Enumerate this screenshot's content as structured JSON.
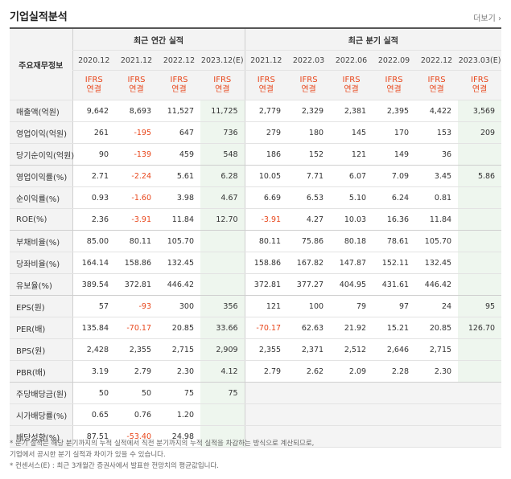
{
  "title": "기업실적분석",
  "more_label": "더보기",
  "header": {
    "row_label": "주요재무정보",
    "annual_group": "최근 연간 실적",
    "quarter_group": "최근 분기 실적",
    "annual_periods": [
      "2020.12",
      "2021.12",
      "2022.12",
      "2023.12(E)"
    ],
    "quarter_periods": [
      "2021.12",
      "2022.03",
      "2022.06",
      "2022.09",
      "2022.12",
      "2023.03(E)"
    ],
    "standard_line1": "IFRS",
    "standard_line2": "연결"
  },
  "rows": [
    {
      "label": "매출액(억원)",
      "annual": [
        "9,642",
        "8,693",
        "11,527",
        "11,725"
      ],
      "quarter": [
        "2,779",
        "2,329",
        "2,381",
        "2,395",
        "4,422",
        "3,569"
      ]
    },
    {
      "label": "영업이익(억원)",
      "annual": [
        "261",
        "-195",
        "647",
        "736"
      ],
      "quarter": [
        "279",
        "180",
        "145",
        "170",
        "153",
        "209"
      ]
    },
    {
      "label": "당기순이익(억원)",
      "annual": [
        "90",
        "-139",
        "459",
        "548"
      ],
      "quarter": [
        "186",
        "152",
        "121",
        "149",
        "36",
        ""
      ]
    },
    {
      "label": "영업이익률(%)",
      "annual": [
        "2.71",
        "-2.24",
        "5.61",
        "6.28"
      ],
      "quarter": [
        "10.05",
        "7.71",
        "6.07",
        "7.09",
        "3.45",
        "5.86"
      ]
    },
    {
      "label": "순이익률(%)",
      "annual": [
        "0.93",
        "-1.60",
        "3.98",
        "4.67"
      ],
      "quarter": [
        "6.69",
        "6.53",
        "5.10",
        "6.24",
        "0.81",
        ""
      ]
    },
    {
      "label": "ROE(%)",
      "annual": [
        "2.36",
        "-3.91",
        "11.84",
        "12.70"
      ],
      "quarter": [
        "-3.91",
        "4.27",
        "10.03",
        "16.36",
        "11.84",
        ""
      ]
    },
    {
      "label": "부채비율(%)",
      "annual": [
        "85.00",
        "80.11",
        "105.70",
        ""
      ],
      "quarter": [
        "80.11",
        "75.86",
        "80.18",
        "78.61",
        "105.70",
        ""
      ]
    },
    {
      "label": "당좌비율(%)",
      "annual": [
        "164.14",
        "158.86",
        "132.45",
        ""
      ],
      "quarter": [
        "158.86",
        "167.82",
        "147.87",
        "152.11",
        "132.45",
        ""
      ]
    },
    {
      "label": "유보율(%)",
      "annual": [
        "389.54",
        "372.81",
        "446.42",
        ""
      ],
      "quarter": [
        "372.81",
        "377.27",
        "404.95",
        "431.61",
        "446.42",
        ""
      ]
    },
    {
      "label": "EPS(원)",
      "annual": [
        "57",
        "-93",
        "300",
        "356"
      ],
      "quarter": [
        "121",
        "100",
        "79",
        "97",
        "24",
        "95"
      ]
    },
    {
      "label": "PER(배)",
      "annual": [
        "135.84",
        "-70.17",
        "20.85",
        "33.66"
      ],
      "quarter": [
        "-70.17",
        "62.63",
        "21.92",
        "15.21",
        "20.85",
        "126.70"
      ]
    },
    {
      "label": "BPS(원)",
      "annual": [
        "2,428",
        "2,355",
        "2,715",
        "2,909"
      ],
      "quarter": [
        "2,355",
        "2,371",
        "2,512",
        "2,646",
        "2,715",
        ""
      ]
    },
    {
      "label": "PBR(배)",
      "annual": [
        "3.19",
        "2.79",
        "2.30",
        "4.12"
      ],
      "quarter": [
        "2.79",
        "2.62",
        "2.09",
        "2.28",
        "2.30",
        ""
      ]
    },
    {
      "label": "주당배당금(원)",
      "annual": [
        "50",
        "50",
        "75",
        "75"
      ],
      "quarter": [
        "",
        "",
        "",
        "",
        "",
        ""
      ],
      "quarter_blank": true
    },
    {
      "label": "시가배당률(%)",
      "annual": [
        "0.65",
        "0.76",
        "1.20",
        ""
      ],
      "quarter": [
        "",
        "",
        "",
        "",
        "",
        ""
      ],
      "quarter_blank": true
    },
    {
      "label": "배당성향(%)",
      "annual": [
        "87.51",
        "-53.40",
        "24.98",
        ""
      ],
      "quarter": [
        "",
        "",
        "",
        "",
        "",
        ""
      ],
      "quarter_blank": true
    }
  ],
  "notes": [
    "* 분기 실적은 해당 분기까지의 누적 실적에서 직전 분기까지의 누적 실적을 차감하는 방식으로 계산되므로,",
    "  기업에서 공시한 분기 실적과 차이가 있을 수 있습니다.",
    "* 컨센서스(E) : 최근 3개월간 증권사에서 발표한 전망치의 평균값입니다."
  ]
}
